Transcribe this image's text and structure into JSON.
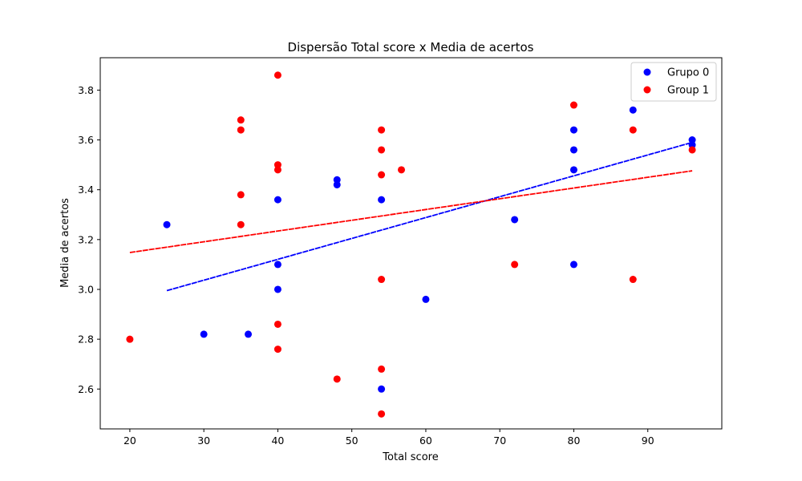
{
  "chart_data": {
    "type": "scatter",
    "title": "Dispersão Total score x Media de acertos",
    "xlabel": "Total score",
    "ylabel": "Media de acertos",
    "xlim": [
      16,
      100
    ],
    "ylim": [
      2.44,
      3.93
    ],
    "xticks": [
      20,
      30,
      40,
      50,
      60,
      70,
      80,
      90
    ],
    "yticks": [
      2.6,
      2.8,
      3.0,
      3.2,
      3.4,
      3.6,
      3.8
    ],
    "xtick_labels": [
      "20",
      "30",
      "40",
      "50",
      "60",
      "70",
      "80",
      "90"
    ],
    "ytick_labels": [
      "2.6",
      "2.8",
      "3.0",
      "3.2",
      "3.4",
      "3.6",
      "3.8"
    ],
    "grid": false,
    "legend_position": "top-right",
    "series": [
      {
        "name": "Grupo 0",
        "color": "#0000ff",
        "points": [
          [
            25,
            3.26
          ],
          [
            30,
            2.82
          ],
          [
            36,
            2.82
          ],
          [
            40,
            3.36
          ],
          [
            40,
            3.1
          ],
          [
            40,
            3.0
          ],
          [
            48,
            3.44
          ],
          [
            48,
            3.42
          ],
          [
            54,
            3.36
          ],
          [
            54,
            2.6
          ],
          [
            60,
            2.96
          ],
          [
            72,
            3.28
          ],
          [
            80,
            3.64
          ],
          [
            80,
            3.56
          ],
          [
            80,
            3.48
          ],
          [
            80,
            3.1
          ],
          [
            88,
            3.72
          ],
          [
            96,
            3.6
          ],
          [
            96,
            3.58
          ]
        ],
        "trendline": {
          "x": [
            25,
            96
          ],
          "y": [
            2.995,
            3.59
          ]
        }
      },
      {
        "name": "Group 1",
        "color": "#ff0000",
        "points": [
          [
            20,
            2.8
          ],
          [
            35,
            3.68
          ],
          [
            35,
            3.64
          ],
          [
            35,
            3.38
          ],
          [
            35,
            3.26
          ],
          [
            40,
            3.86
          ],
          [
            40,
            3.5
          ],
          [
            40,
            3.48
          ],
          [
            40,
            2.86
          ],
          [
            40,
            2.76
          ],
          [
            48,
            2.64
          ],
          [
            54,
            3.64
          ],
          [
            54,
            3.56
          ],
          [
            54,
            3.46
          ],
          [
            54,
            3.04
          ],
          [
            54,
            2.68
          ],
          [
            54,
            2.5
          ],
          [
            56.7,
            3.48
          ],
          [
            72,
            3.1
          ],
          [
            80,
            3.74
          ],
          [
            88,
            3.64
          ],
          [
            88,
            3.04
          ],
          [
            96,
            3.56
          ]
        ],
        "trendline": {
          "x": [
            20,
            96
          ],
          "y": [
            3.148,
            3.476
          ]
        }
      }
    ]
  }
}
